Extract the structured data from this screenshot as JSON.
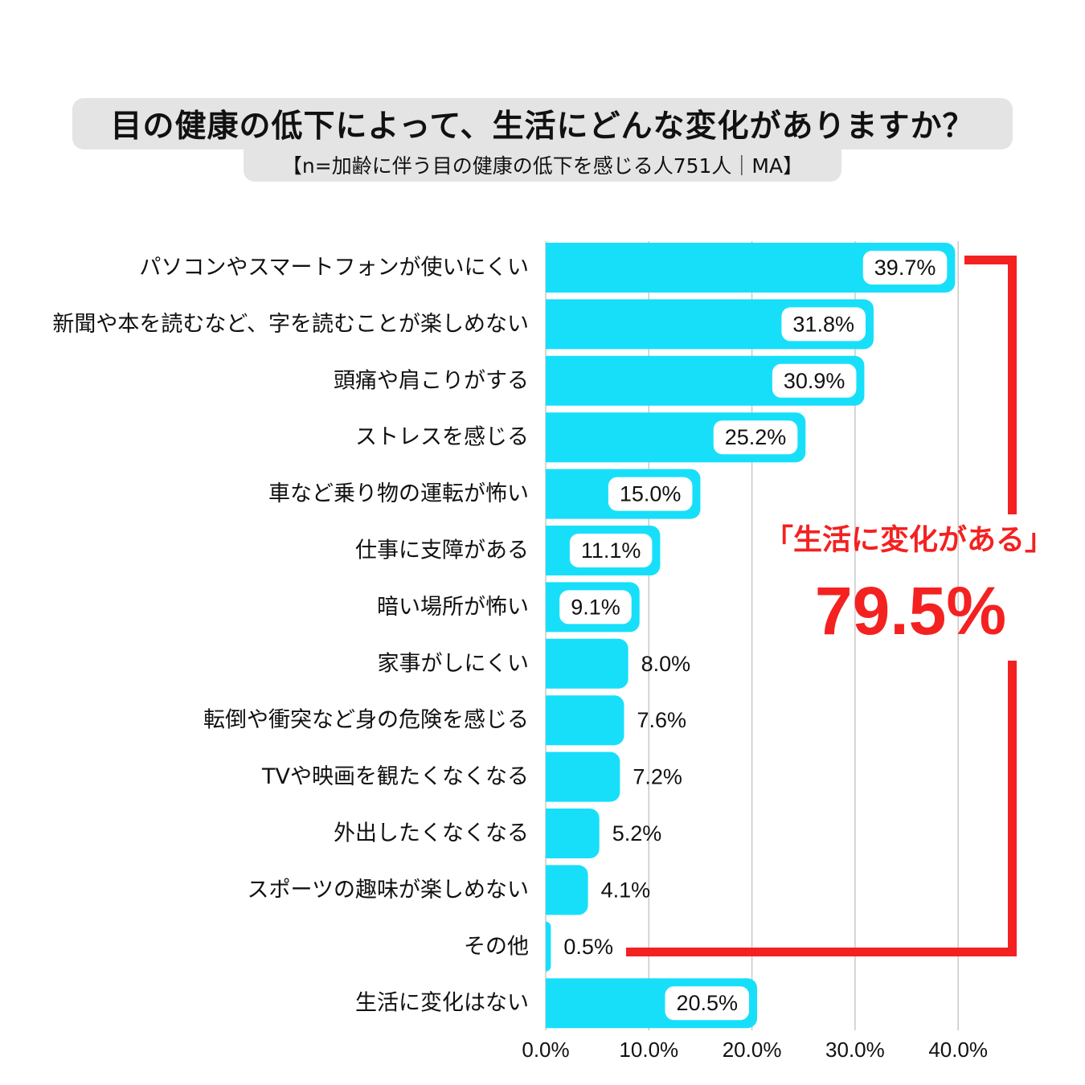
{
  "chart_data": {
    "type": "bar",
    "orientation": "horizontal",
    "title": "目の健康の低下によって、生活にどんな変化がありますか？",
    "subtitle": "【n=加齢に伴う目の健康の低下を感じる人751人｜MA】",
    "categories": [
      "パソコンやスマートフォンが使いにくい",
      "新聞や本を読むなど、字を読むことが楽しめない",
      "頭痛や肩こりがする",
      "ストレスを感じる",
      "車など乗り物の運転が怖い",
      "仕事に支障がある",
      "暗い場所が怖い",
      "家事がしにくい",
      "転倒や衝突など身の危険を感じる",
      "TVや映画を観たくなくなる",
      "外出したくなくなる",
      "スポーツの趣味が楽しめない",
      "その他",
      "生活に変化はない"
    ],
    "values": [
      39.7,
      31.8,
      30.9,
      25.2,
      15.0,
      11.1,
      9.1,
      8.0,
      7.6,
      7.2,
      5.2,
      4.1,
      0.5,
      20.5
    ],
    "data_labels": [
      "39.7%",
      "31.8%",
      "30.9%",
      "25.2%",
      "15.0%",
      "11.1%",
      "9.1%",
      "8.0%",
      "7.6%",
      "7.2%",
      "5.2%",
      "4.1%",
      "0.5%",
      "20.5%"
    ],
    "xlim": [
      0,
      40
    ],
    "xticks": [
      0,
      10,
      20,
      30,
      40
    ],
    "xtick_labels": [
      "0.0%",
      "10.0%",
      "20.0%",
      "30.0%",
      "40.0%"
    ],
    "grid": true,
    "legend": "none",
    "annotation": {
      "text": "「生活に変化がある」",
      "value_label": "79.5%"
    }
  },
  "colors": {
    "bar": "#17DFFA",
    "accent": "#F42121",
    "title_background": "#E4E4E4",
    "gridline": "#C8C8C8",
    "label_box": "#FFFFFF"
  }
}
